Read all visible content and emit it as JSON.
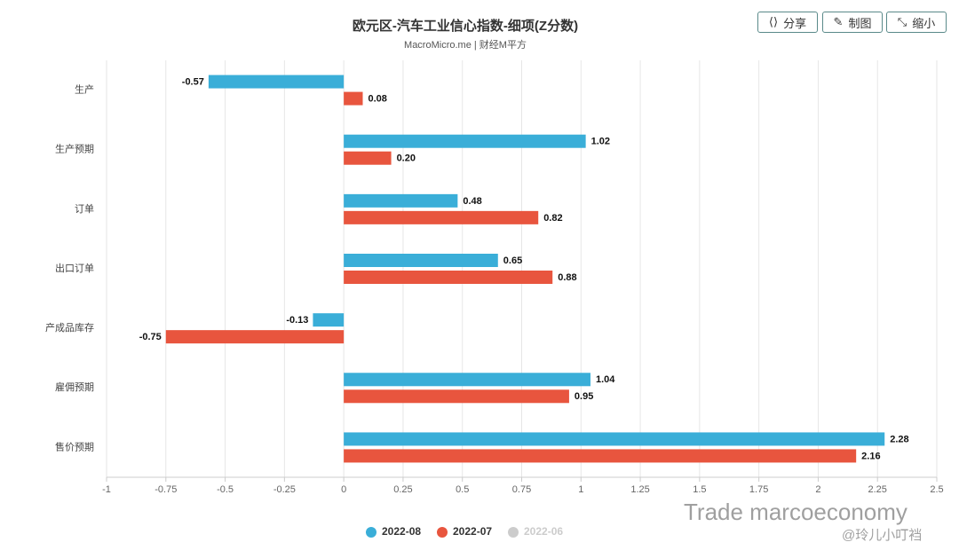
{
  "chart_data": {
    "type": "hbar",
    "title": "欧元区-汽车工业信心指数-细项(Z分数)",
    "subtitle": "MacroMicro.me | 财经M平方",
    "buttons": [
      "分享",
      "制图",
      "缩小"
    ],
    "categories": [
      "生产",
      "生产预期",
      "订单",
      "出口订单",
      "产成品库存",
      "雇佣预期",
      "售价预期"
    ],
    "series": [
      {
        "name": "2022-08",
        "color": "#3aaed8",
        "visible": true,
        "values": [
          -0.57,
          1.02,
          0.48,
          0.65,
          -0.13,
          1.04,
          2.28
        ],
        "value_labels": [
          "-0.57",
          "1.02",
          "0.48",
          "0.65",
          "-0.13",
          "1.04",
          "2.28"
        ]
      },
      {
        "name": "2022-07",
        "color": "#e8553e",
        "visible": true,
        "values": [
          0.08,
          0.2,
          0.82,
          0.88,
          -0.75,
          0.95,
          2.16
        ],
        "value_labels": [
          "0.08",
          "0.20",
          "0.82",
          "0.88",
          "-0.75",
          "0.95",
          "2.16"
        ]
      },
      {
        "name": "2022-06",
        "color": "#cccccc",
        "visible": false,
        "values": [
          null,
          null,
          null,
          null,
          null,
          null,
          null
        ]
      }
    ],
    "xlim": [
      -1,
      2.5
    ],
    "xticks": [
      -1,
      -0.75,
      -0.5,
      -0.25,
      0,
      0.25,
      0.5,
      0.75,
      1,
      1.25,
      1.5,
      1.75,
      2,
      2.25,
      2.5
    ],
    "grid": true,
    "legend": "bottom",
    "watermark": [
      "Trade marcoeconomy",
      "@玲儿小叮裆"
    ]
  }
}
